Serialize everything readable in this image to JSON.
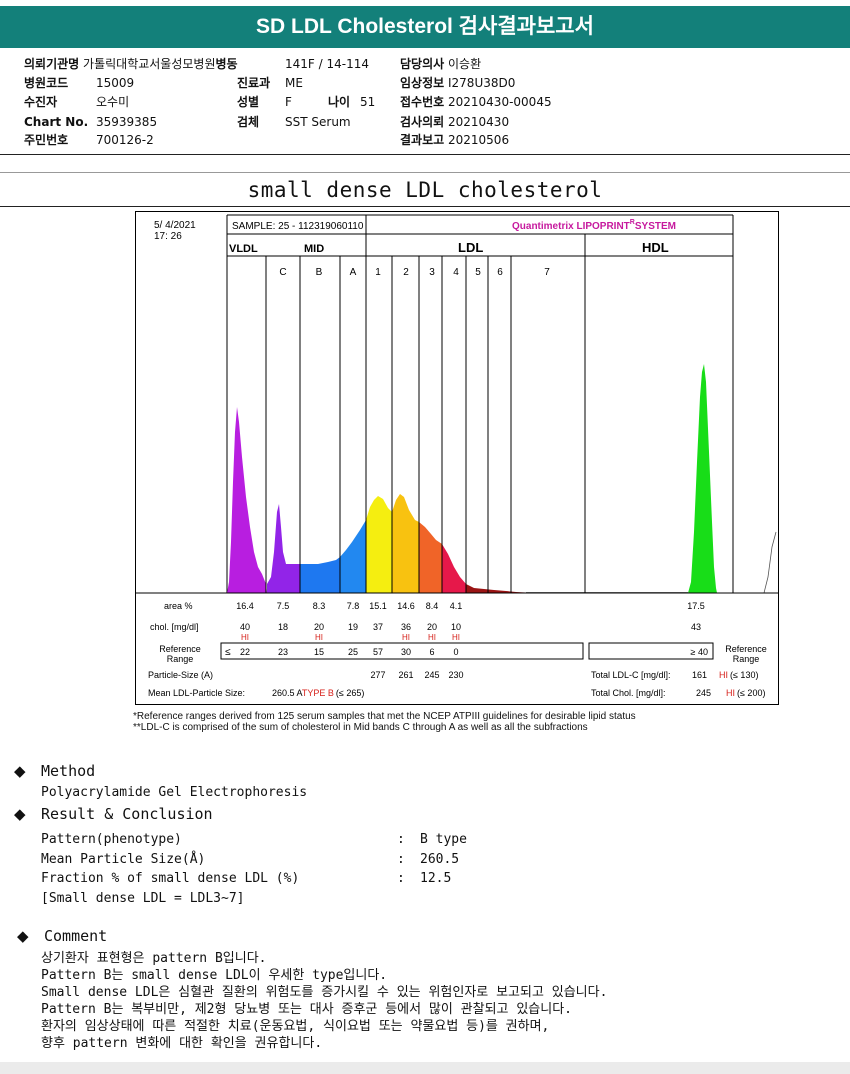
{
  "report_title": "SD LDL Cholesterol 검사결과보고서",
  "info": {
    "institution_label": "의뢰기관명",
    "institution_value": "가톨릭대학교서울성모병원",
    "ward_label": "병동",
    "ward_value": "141F / 14-114",
    "doctor_label": "담당의사",
    "doctor_value": "이승환",
    "hospital_code_label": "병원코드",
    "hospital_code_value": "15009",
    "department_label": "진료과",
    "department_value": "ME",
    "clinical_info_label": "임상정보",
    "clinical_info_value": "I278U38D0",
    "patient_label": "수진자",
    "patient_value": "오수미",
    "sex_label": "성별",
    "sex_value": "F",
    "age_label": "나이",
    "age_value": "51",
    "reception_label": "접수번호",
    "reception_value": "20210430-00045",
    "chart_no_label": "Chart No.",
    "chart_no_value": "35939385",
    "specimen_label": "검체",
    "specimen_value": "SST Serum",
    "request_label": "검사의뢰",
    "request_value": "20210430",
    "rrn_label": "주민번호",
    "rrn_value": "700126-2",
    "result_report_label": "결과보고",
    "result_report_value": "20210506"
  },
  "section_title": "small dense LDL cholesterol",
  "chart": {
    "date": "5/ 4/2021",
    "time": "17: 26",
    "sample": "SAMPLE:  25 - 112319060110",
    "brand": "Quantimetrix LIPOPRINT",
    "brand_r": "R",
    "brand_system": "SYSTEM",
    "vldl": "VLDL",
    "mid": "MID",
    "ldl": "LDL",
    "hdl": "HDL",
    "mid_bands": [
      "C",
      "B",
      "A"
    ],
    "ldl_bands": [
      "1",
      "2",
      "3",
      "4",
      "5",
      "6",
      "7"
    ],
    "area_label": "area %",
    "chol_label": "chol. [mg/dl]",
    "ref_label_1": "Reference",
    "ref_label_2": "Range",
    "ref_right_1": "Reference",
    "ref_right_2": "Range",
    "particle_label": "Particle-Size (A)",
    "mean_label": "Mean LDL-Particle Size:",
    "mean_value": "260.5 A",
    "mean_type": "TYPE B",
    "mean_range": "(≤ 265)",
    "total_ldlc_label": "Total LDL-C [mg/dl]:",
    "total_ldlc_value": "161",
    "total_ldlc_hi": "HI",
    "total_ldlc_range": "(≤ 130)",
    "total_chol_label": "Total Chol. [mg/dl]:",
    "total_chol_value": "245",
    "total_chol_hi": "HI",
    "total_chol_range": "(≤ 200)",
    "hdl_area": "17.5",
    "hdl_chol": "43",
    "hdl_ref": "≥  40",
    "ref_prefix": "≤",
    "hi": "HI"
  },
  "chart_data": {
    "type": "area",
    "title": "",
    "bands": [
      "VLDL",
      "C",
      "B",
      "A",
      "1",
      "2",
      "3",
      "4",
      "5",
      "6",
      "7",
      "HDL"
    ],
    "area_percent": [
      "16.4",
      "7.5",
      "8.3",
      "7.8",
      "15.1",
      "14.6",
      "8.4",
      "4.1",
      "",
      "",
      "",
      "17.5"
    ],
    "chol_mg_dl": [
      "40",
      "18",
      "20",
      "19",
      "37",
      "36",
      "20",
      "10",
      "",
      "",
      "",
      "43"
    ],
    "hi_flags": [
      true,
      false,
      true,
      false,
      false,
      true,
      true,
      true,
      false,
      false,
      false,
      false
    ],
    "reference_range": [
      "22",
      "23",
      "15",
      "25",
      "57",
      "30",
      "6",
      "0",
      "",
      "",
      "",
      "40"
    ],
    "particle_size_A": [
      "",
      "",
      "",
      "",
      "277",
      "261",
      "245",
      "230",
      "",
      "",
      "",
      ""
    ],
    "band_colors": [
      "#b81ee0",
      "#9224e8",
      "#1e78f0",
      "#2288f0",
      "#f5ee10",
      "#f8c210",
      "#f06428",
      "#e6184a",
      "#9a1414",
      "#9a1414",
      "#9a1414",
      "#18dd18"
    ]
  },
  "notes": [
    "*Reference ranges derived from 125 serum samples that met the NCEP ATPIII guidelines for desirable lipid status",
    "**LDL-C is comprised of the sum of cholesterol in Mid bands C through A as well as all the subfractions"
  ],
  "method": {
    "bullet": "◆",
    "title": "Method",
    "text": "Polyacrylamide Gel Electrophoresis"
  },
  "result": {
    "bullet": "◆",
    "title": "Result & Conclusion",
    "rows": [
      {
        "label": "Pattern(phenotype)",
        "colon": ":",
        "value": "B type"
      },
      {
        "label": "Mean Particle Size(Å)",
        "colon": ":",
        "value": "260.5"
      },
      {
        "label": "Fraction % of small dense LDL (%)",
        "colon": ":",
        "value": "12.5"
      }
    ],
    "note": "[Small dense LDL = LDL3~7]"
  },
  "comment": {
    "bullet": "◆",
    "title": "Comment",
    "lines": [
      "상기환자 표현형은 pattern B입니다.",
      "Pattern B는 small dense LDL이 우세한 type입니다.",
      "Small dense LDL은 심혈관 질환의 위험도를 증가시킬 수 있는 위험인자로 보고되고 있습니다.",
      "Pattern B는 복부비만, 제2형 당뇨병 또는 대사 증후군 등에서 많이 관찰되고 있습니다.",
      "환자의 임상상태에 따른 적절한 치료(운동요법, 식이요법 또는 약물요법 등)를 권하며,",
      "향후 pattern 변화에 대한 확인을 권유합니다."
    ]
  }
}
